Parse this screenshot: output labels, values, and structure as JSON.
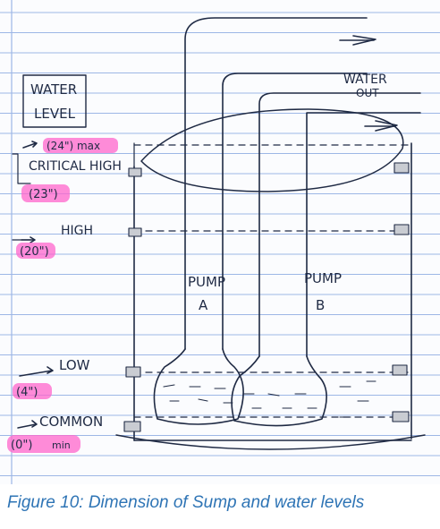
{
  "diagram": {
    "legend_box": {
      "line1": "WATER",
      "line2": "LEVEL"
    },
    "outlet": {
      "line1": "WATER",
      "line2": "OUT"
    },
    "levels": [
      {
        "name": "CRITICAL HIGH",
        "value": "(23\")",
        "max_note": "(24\") max"
      },
      {
        "name": "HIGH",
        "value": "(20\")"
      },
      {
        "name": "LOW",
        "value": "(4\")"
      },
      {
        "name": "COMMON",
        "value": "(0\")",
        "min_note": "min"
      }
    ],
    "pumps": [
      {
        "line1": "PUMP",
        "line2": "A"
      },
      {
        "line1": "PUMP",
        "line2": "B"
      }
    ]
  },
  "caption": "Figure 10: Dimension of Sump and water levels"
}
